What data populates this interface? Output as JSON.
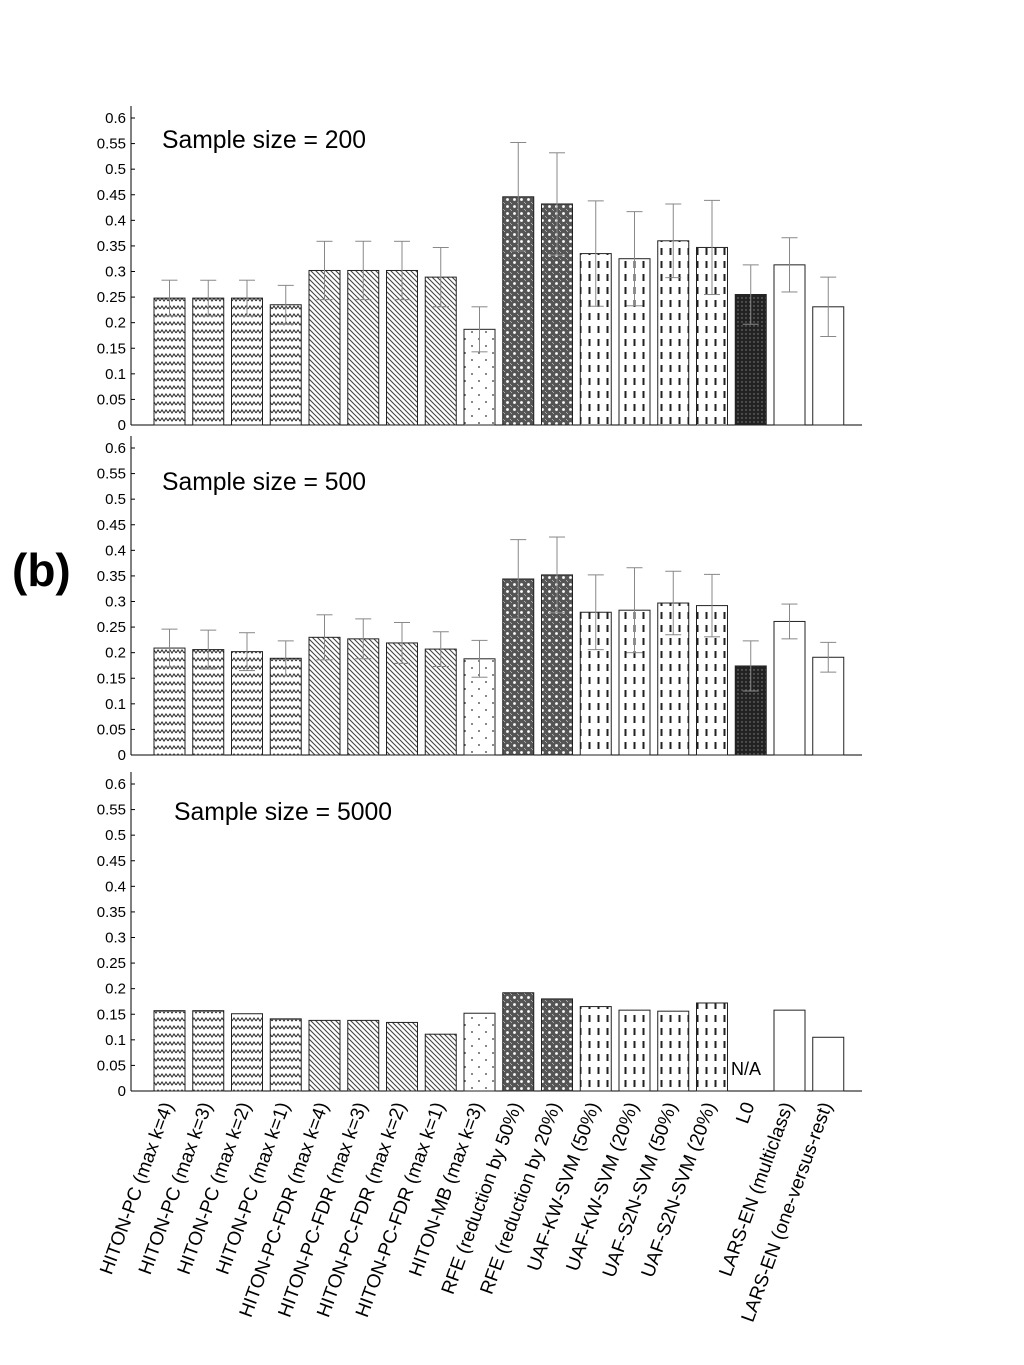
{
  "figure_label": "(b)",
  "na_label": "N/A",
  "chart_data": {
    "type": "bar",
    "categories": [
      "HITON-PC (max k=4)",
      "HITON-PC (max k=3)",
      "HITON-PC (max k=2)",
      "HITON-PC (max k=1)",
      "HITON-PC-FDR (max k=4)",
      "HITON-PC-FDR (max k=3)",
      "HITON-PC-FDR (max k=2)",
      "HITON-PC-FDR (max k=1)",
      "HITON-MB (max k=3)",
      "RFE (reduction by 50%)",
      "RFE (reduction by 20%)",
      "UAF-KW-SVM (50%)",
      "UAF-KW-SVM (20%)",
      "UAF-S2N-SVM (50%)",
      "UAF-S2N-SVM (20%)",
      "L0",
      "LARS-EN (multiclass)",
      "LARS-EN (one-versus-rest)"
    ],
    "patterns": [
      "zigzag",
      "zigzag",
      "zigzag",
      "zigzag",
      "diag",
      "diag",
      "diag",
      "diag",
      "dots",
      "lattice",
      "lattice",
      "dash",
      "dash",
      "dash",
      "dash",
      "dark",
      "none",
      "none"
    ],
    "ylim": [
      0,
      0.6
    ],
    "yticks": [
      "0",
      "0.05",
      "0.1",
      "0.15",
      "0.2",
      "0.25",
      "0.3",
      "0.35",
      "0.4",
      "0.45",
      "0.5",
      "0.55",
      "0.6"
    ],
    "panels": [
      {
        "title": "Sample size = 200",
        "values": [
          0.248,
          0.248,
          0.248,
          0.235,
          0.302,
          0.302,
          0.302,
          0.289,
          0.187,
          0.446,
          0.432,
          0.335,
          0.325,
          0.36,
          0.347,
          0.255,
          0.313,
          0.231
        ],
        "errors": [
          0.035,
          0.035,
          0.035,
          0.038,
          0.057,
          0.057,
          0.057,
          0.058,
          0.044,
          0.106,
          0.1,
          0.103,
          0.092,
          0.072,
          0.092,
          0.058,
          0.053,
          0.058
        ]
      },
      {
        "title": "Sample size = 500",
        "values": [
          0.209,
          0.206,
          0.202,
          0.189,
          0.23,
          0.227,
          0.219,
          0.207,
          0.188,
          0.344,
          0.352,
          0.279,
          0.283,
          0.297,
          0.292,
          0.174,
          0.261,
          0.191
        ],
        "errors": [
          0.037,
          0.038,
          0.037,
          0.034,
          0.044,
          0.039,
          0.04,
          0.034,
          0.036,
          0.077,
          0.074,
          0.073,
          0.083,
          0.062,
          0.061,
          0.049,
          0.034,
          0.029
        ]
      },
      {
        "title": "Sample size = 5000",
        "values": [
          0.157,
          0.157,
          0.151,
          0.141,
          0.138,
          0.138,
          0.134,
          0.111,
          0.152,
          0.192,
          0.18,
          0.165,
          0.158,
          0.156,
          0.172,
          null,
          0.158,
          0.105
        ],
        "errors": [
          null,
          null,
          null,
          null,
          null,
          null,
          null,
          null,
          null,
          null,
          null,
          null,
          null,
          null,
          null,
          null,
          null,
          null
        ]
      }
    ],
    "xlabel": "",
    "ylabel": "",
    "grid": false
  }
}
